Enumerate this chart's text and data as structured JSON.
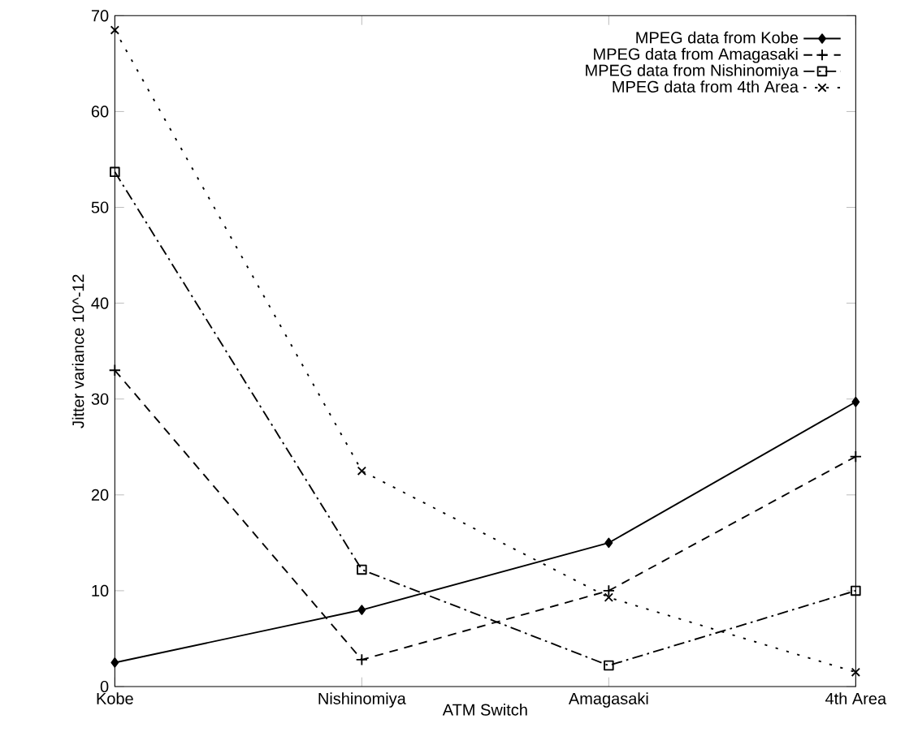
{
  "chart_data": {
    "type": "line",
    "xlabel": "ATM Switch",
    "ylabel": "Jitter variance 10^-12",
    "categories": [
      "Kobe",
      "Nishinomiya",
      "Amagasaki",
      "4th Area"
    ],
    "ylim": [
      0,
      70
    ],
    "yticks": [
      0,
      10,
      20,
      30,
      40,
      50,
      60,
      70
    ],
    "legend": "top right",
    "grid": false,
    "series": [
      {
        "name": "MPEG data from Kobe",
        "color": "#000000",
        "line_style": "solid",
        "marker": "diamond",
        "values": [
          2.5,
          8,
          15,
          29.7
        ]
      },
      {
        "name": "MPEG data from Amagasaki",
        "color": "#000000",
        "line_style": "dashed",
        "marker": "plus",
        "values": [
          33,
          2.8,
          10,
          24
        ]
      },
      {
        "name": "MPEG data from Nishinomiya",
        "color": "#000000",
        "line_style": "dashdot",
        "marker": "square",
        "values": [
          53.7,
          12.2,
          2.2,
          10
        ]
      },
      {
        "name": "MPEG data from 4th Area",
        "color": "#000000",
        "line_style": "dotted",
        "marker": "cross",
        "values": [
          68.5,
          22.5,
          9.3,
          1.5
        ]
      }
    ]
  }
}
